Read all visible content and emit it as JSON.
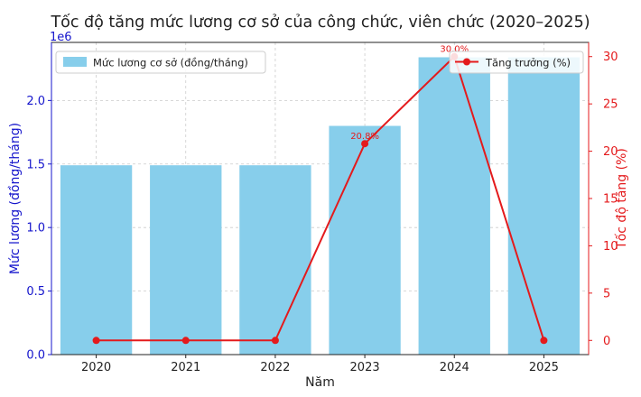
{
  "chart_data": {
    "type": "bar+line",
    "title": "Tốc độ tăng mức lương cơ sở của công chức, viên chức (2020–2025)",
    "categories": [
      "2020",
      "2021",
      "2022",
      "2023",
      "2024",
      "2025"
    ],
    "xlabel": "Năm",
    "series": [
      {
        "name": "Mức lương cơ sở (đồng/tháng)",
        "type": "bar",
        "axis": "left",
        "values": [
          1490000,
          1490000,
          1490000,
          1800000,
          2340000,
          2340000
        ]
      },
      {
        "name": "Tăng trưởng (%)",
        "type": "line",
        "axis": "right",
        "values": [
          0,
          0,
          0,
          20.8,
          30.0,
          0
        ]
      }
    ],
    "data_labels": [
      {
        "category": "2023",
        "text": "20.8%"
      },
      {
        "category": "2024",
        "text": "30.0%"
      }
    ],
    "y_left": {
      "label": "Mức lương (đồng/tháng)",
      "offset_text": "1e6",
      "ticks": [
        0,
        0.5,
        1.0,
        1.5,
        2.0
      ],
      "tick_labels": [
        "0.0",
        "0.5",
        "1.0",
        "1.5",
        "2.0"
      ],
      "range": [
        0,
        2.457
      ]
    },
    "y_right": {
      "label": "Tốc độ tăng (%)",
      "ticks": [
        0,
        5,
        10,
        15,
        20,
        25,
        30
      ],
      "tick_labels": [
        "0",
        "5",
        "10",
        "15",
        "20",
        "25",
        "30"
      ],
      "range": [
        -1.5,
        31.5
      ]
    },
    "grid": true,
    "legend_left_position": "top-left",
    "legend_right_position": "top-right",
    "colors": {
      "bar": "#87ceeb",
      "line": "#e41a1c",
      "left_axis": "#1515cc",
      "right_axis": "#e41a1c"
    }
  }
}
